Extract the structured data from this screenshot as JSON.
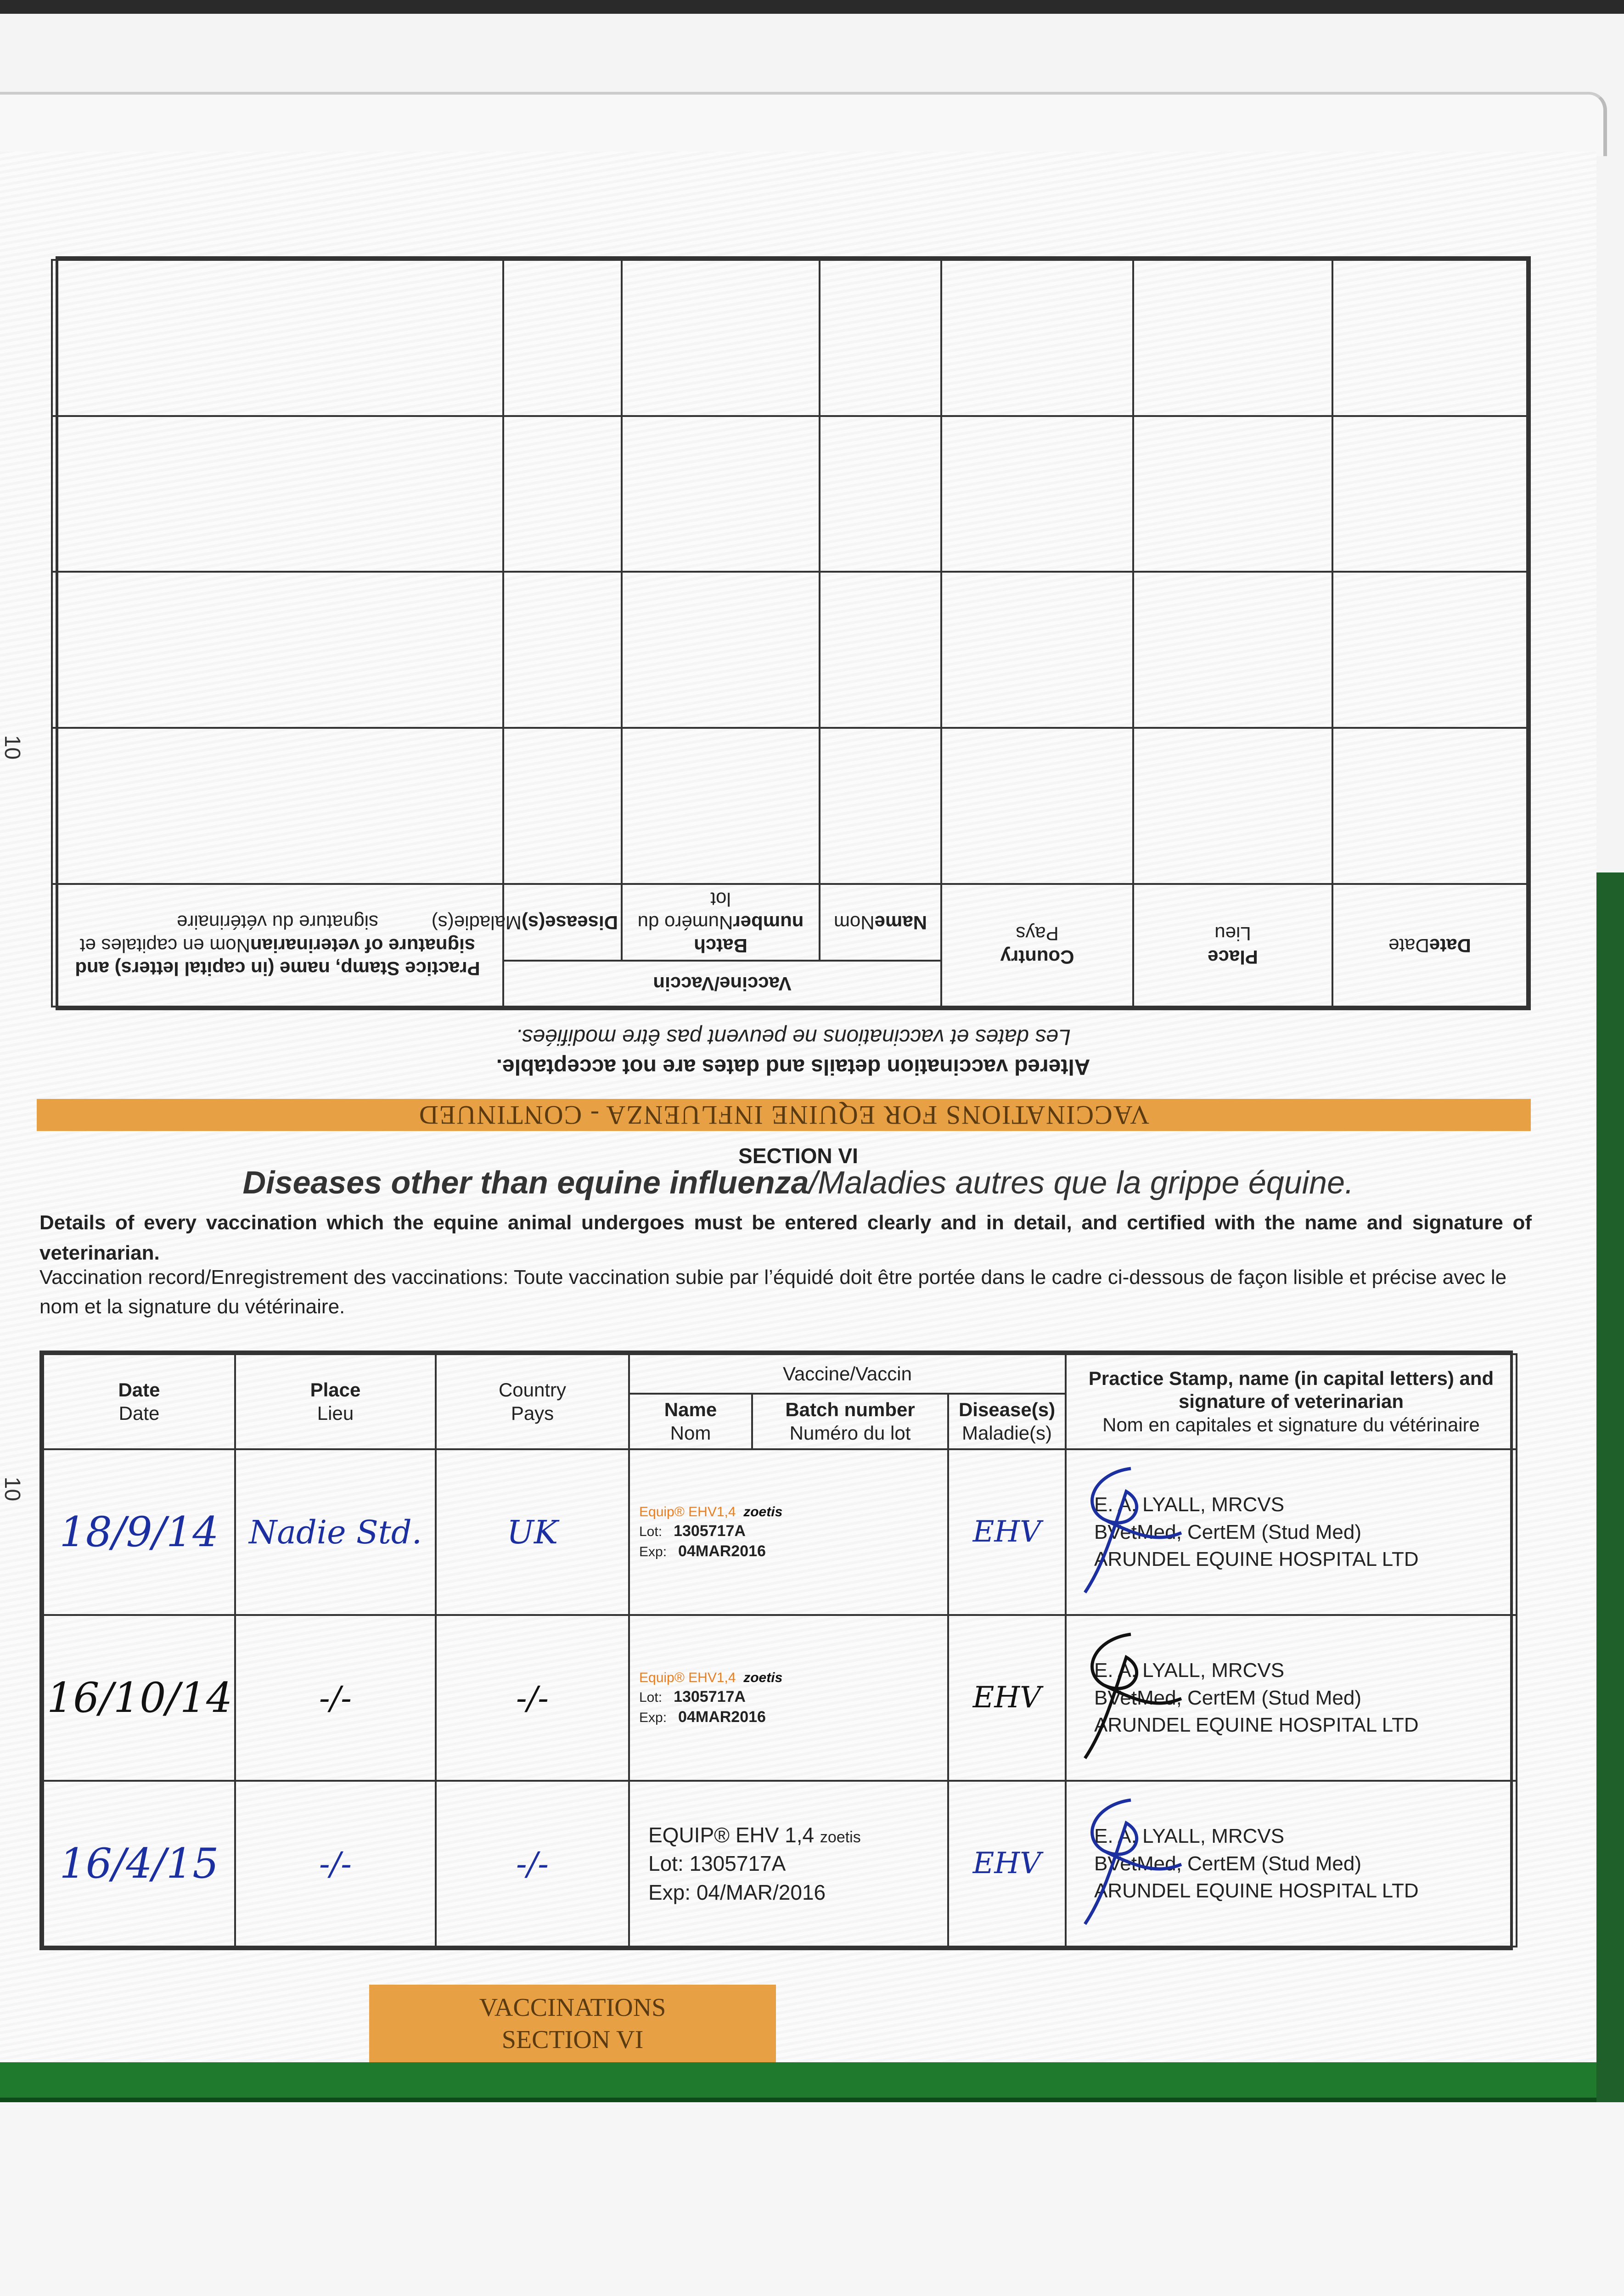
{
  "page_number": "10",
  "upper_table": {
    "band_text": "VACCINATIONS FOR EQUINE INFLUENZA - CONTINUED",
    "note_bold": "Altered vaccination details and dates are not acceptable.",
    "note_italic": "Les dates et vaccinations ne peuvent pas être modifiées.",
    "headers": {
      "date": "Date",
      "date_fr": "Date",
      "place": "Place",
      "place_fr": "Lieu",
      "country": "Country",
      "country_fr": "Pays",
      "vaccine": "Vaccine/Vaccin",
      "name": "Name",
      "name_fr": "Nom",
      "batch": "Batch number",
      "batch_fr": "Numéro du lot",
      "disease": "Disease(s)",
      "disease_fr": "Maladie(s)",
      "stamp": "Practice Stamp, name (in capital letters) and signature of veterinarian",
      "stamp_fr": "Nom en capitales et signature du vétérinaire"
    }
  },
  "section": {
    "number": "SECTION VI",
    "title_bold": "Diseases other than equine influenza",
    "title_italic": "/Maladies autres que la grippe équine.",
    "details": "Details of every vaccination which the equine animal undergoes must be entered clearly and in detail, and certified with the name and signature of veterinarian.",
    "record": "Vaccination record/Enregistrement des vaccinations: Toute vaccination subie par l’équidé doit être portée dans le cadre ci-dessous de façon lisible et précise avec le nom et la signature du vétérinaire."
  },
  "lower_table": {
    "headers": {
      "date": "Date",
      "date_fr": "Date",
      "place": "Place",
      "place_fr": "Lieu",
      "country": "Country",
      "country_fr": "Pays",
      "vaccine": "Vaccine/Vaccin",
      "name": "Name",
      "name_fr": "Nom",
      "batch": "Batch number",
      "batch_fr": "Numéro du lot",
      "disease": "Disease(s)",
      "disease_fr": "Maladie(s)",
      "stamp": "Practice Stamp, name (in capital letters) and signature of veterinarian",
      "stamp_fr": "Nom en capitales et signature du vétérinaire"
    },
    "rows": [
      {
        "date": "18/9/14",
        "place": "Nadie Std.",
        "country": "UK",
        "vaccine_brand": "Equip® EHV1,4",
        "vaccine_maker": "zoetis",
        "lot_label": "Lot:",
        "lot": "1305717A",
        "exp_label": "Exp:",
        "exp": "04MAR2016",
        "disease": "EHV",
        "vet_name": "E. A. LYALL, MRCVS",
        "vet_quals": "BVetMed, CertEM (Stud Med)",
        "vet_practice": "ARUNDEL EQUINE HOSPITAL LTD",
        "ink": "#1c2fa0"
      },
      {
        "date": "16/10/14",
        "place": "-/-",
        "country": "-/-",
        "vaccine_brand": "Equip® EHV1,4",
        "vaccine_maker": "zoetis",
        "lot_label": "Lot:",
        "lot": "1305717A",
        "exp_label": "Exp:",
        "exp": "04MAR2016",
        "disease": "EHV",
        "vet_name": "E. A. LYALL, MRCVS",
        "vet_quals": "BVetMed, CertEM (Stud Med)",
        "vet_practice": "ARUNDEL EQUINE HOSPITAL LTD",
        "ink": "#111111"
      },
      {
        "date": "16/4/15",
        "place": "-/-",
        "country": "-/-",
        "vaccine_brand": "EQUIP® EHV 1,4",
        "vaccine_maker": "zoetis",
        "lot_label": "Lot:",
        "lot": "1305717A",
        "exp_label": "Exp:",
        "exp": "04/MAR/2016",
        "disease": "EHV",
        "vet_name": "E. A. LYALL, MRCVS",
        "vet_quals": "BVetMed, CertEM (Stud Med)",
        "vet_practice": "ARUNDEL EQUINE HOSPITAL LTD",
        "ink": "#1c2fa0"
      }
    ]
  },
  "section_label": {
    "line1": "VACCINATIONS",
    "line2": "SECTION VI"
  },
  "colors": {
    "band": "#e8a045",
    "cover_green": "#1f7a2e",
    "ink_blue": "#1c2fa0"
  }
}
